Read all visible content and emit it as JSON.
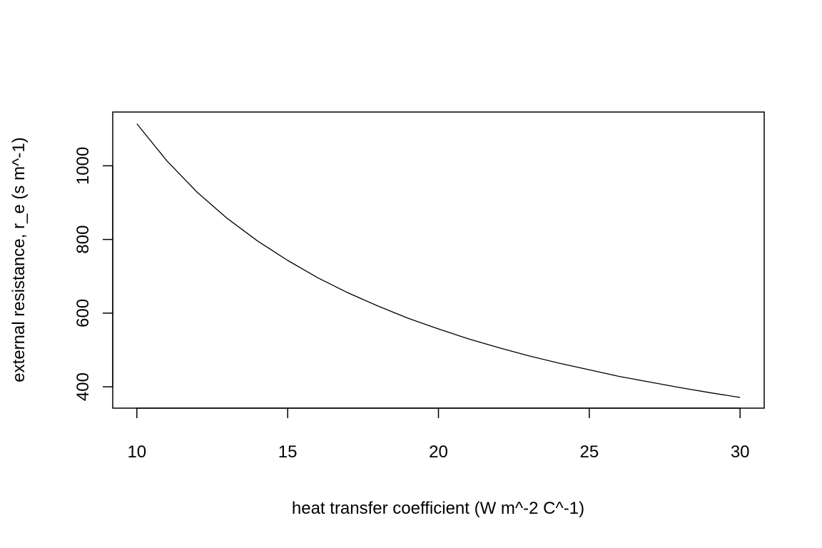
{
  "chart_data": {
    "type": "line",
    "title": "",
    "xlabel": "heat transfer coefficient (W m^-2 C^-1)",
    "ylabel": "external resistance, r_e (s m^-1)",
    "xlim": [
      9.2,
      30.8
    ],
    "ylim": [
      342,
      1146
    ],
    "x_ticks": [
      "10",
      "15",
      "20",
      "25",
      "30"
    ],
    "y_ticks": [
      "400",
      "600",
      "800",
      "1000"
    ],
    "grid": false,
    "legend": "none",
    "colors": {
      "line": "#000000",
      "axes": "#000000",
      "background": "#ffffff"
    },
    "series": [
      {
        "x": [
          10,
          11,
          12,
          13,
          14,
          15,
          16,
          17,
          18,
          19,
          20,
          21,
          22,
          23,
          24,
          25,
          26,
          27,
          28,
          29,
          30
        ],
        "y": [
          1114,
          1013,
          928,
          857,
          796,
          743,
          696,
          655,
          619,
          586,
          557,
          530,
          506,
          484,
          464,
          446,
          428,
          413,
          398,
          384,
          371
        ]
      }
    ]
  }
}
